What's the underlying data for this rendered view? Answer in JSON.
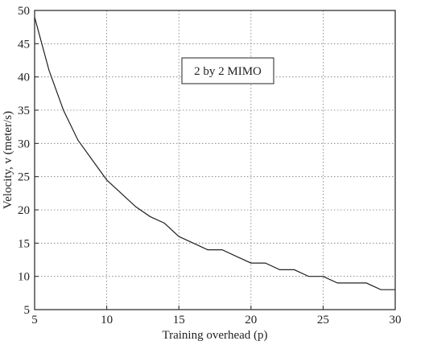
{
  "chart_data": {
    "type": "line",
    "title": "",
    "xlabel": "Training overhead (p)",
    "ylabel": "Velocity, v (meter/s)",
    "xlim": [
      5,
      30
    ],
    "ylim": [
      5,
      50
    ],
    "xticks": [
      5,
      10,
      15,
      20,
      25,
      30
    ],
    "yticks": [
      5,
      10,
      15,
      20,
      25,
      30,
      35,
      40,
      45,
      50
    ],
    "grid": true,
    "annotation": "2 by 2 MIMO",
    "series": [
      {
        "x": [
          5,
          6,
          7,
          8,
          9,
          10,
          11,
          12,
          13,
          14,
          15,
          16,
          17,
          18,
          19,
          20,
          21,
          22,
          23,
          24,
          25,
          26,
          27,
          28,
          29,
          30
        ],
        "values": [
          49,
          41,
          35,
          30.5,
          27.5,
          24.5,
          22.5,
          20.5,
          19,
          18,
          16,
          15,
          14,
          14,
          13,
          12,
          12,
          11,
          11,
          10,
          10,
          9,
          9,
          9,
          8,
          8
        ]
      }
    ]
  }
}
